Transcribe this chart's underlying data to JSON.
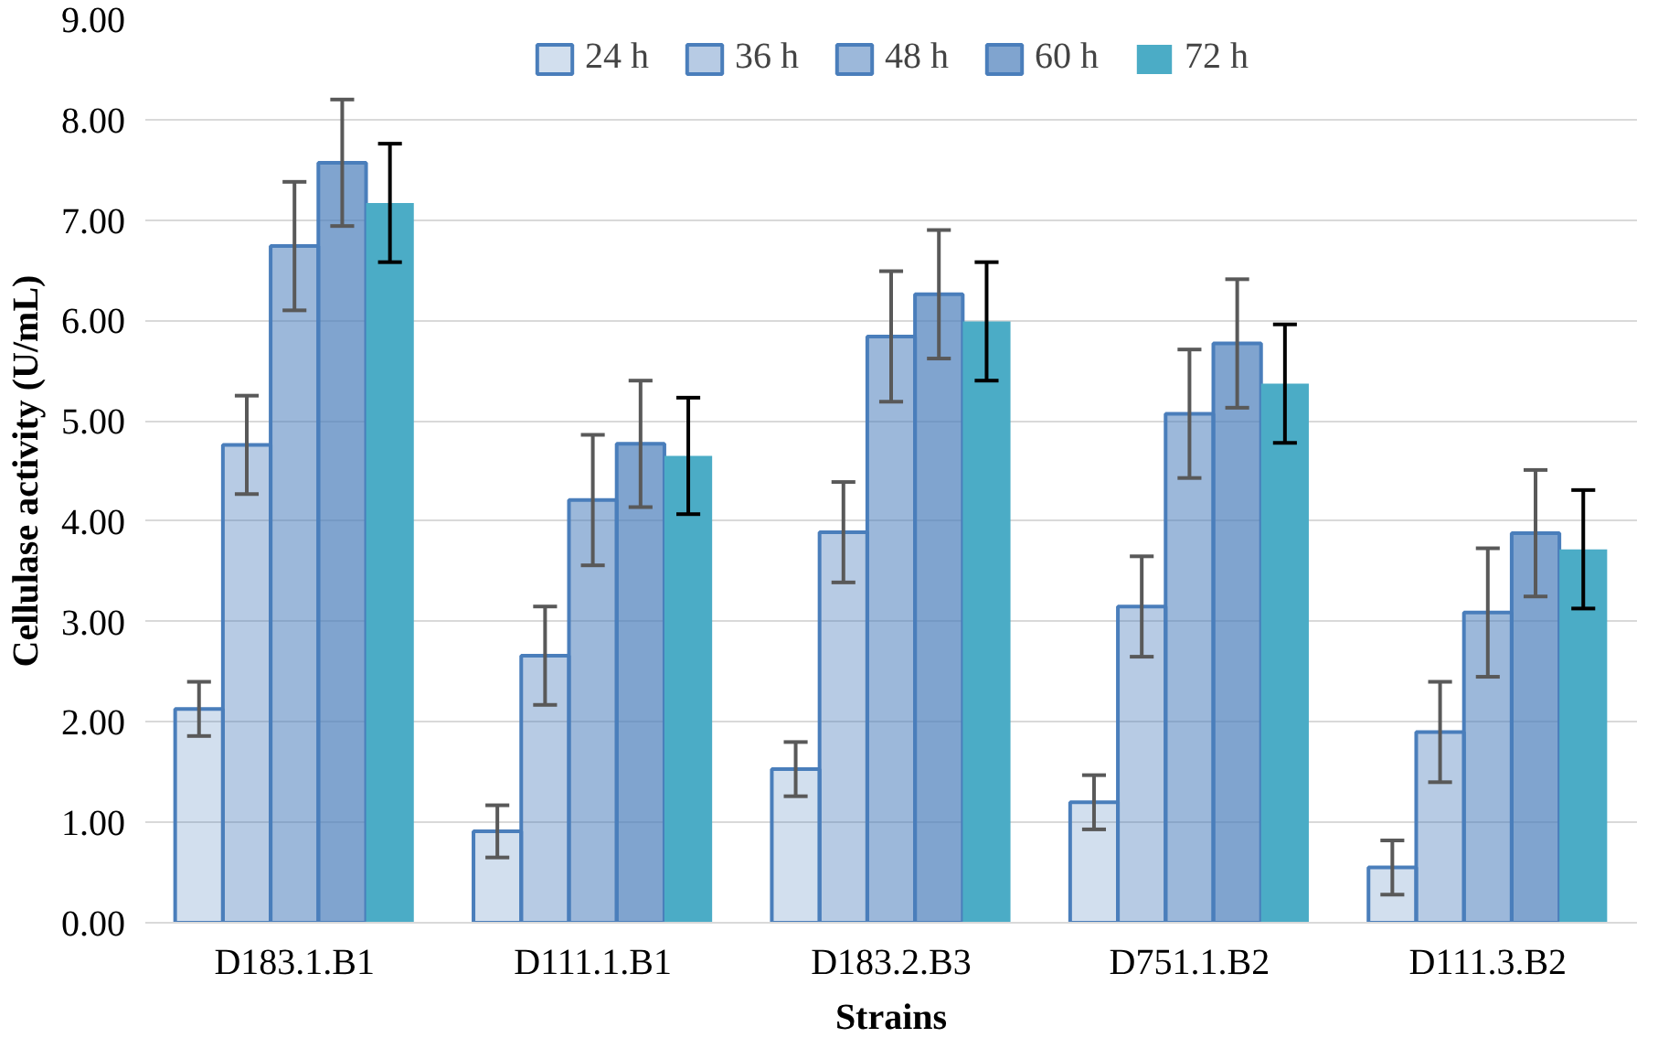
{
  "chart_data": {
    "type": "bar",
    "xlabel": "Strains",
    "ylabel": "Cellulase activity (U/mL)",
    "categories": [
      "D183.1.B1",
      "D111.1.B1",
      "D183.2.B3",
      "D751.1.B2",
      "D111.3.B2"
    ],
    "series": [
      {
        "name": "24 h",
        "color": "#4a7ebb",
        "values": [
          2.13,
          0.91,
          1.53,
          1.2,
          0.55
        ],
        "errors": [
          0.27,
          0.26,
          0.27,
          0.27,
          0.27
        ]
      },
      {
        "name": "36 h",
        "color": "#4a7ebb",
        "values": [
          4.76,
          2.66,
          3.89,
          3.15,
          1.9
        ],
        "errors": [
          0.49,
          0.49,
          0.5,
          0.5,
          0.5
        ]
      },
      {
        "name": "48 h",
        "color": "#4a7ebb",
        "values": [
          6.74,
          4.21,
          5.84,
          5.07,
          3.09
        ],
        "errors": [
          0.64,
          0.65,
          0.65,
          0.64,
          0.64
        ]
      },
      {
        "name": "60 h",
        "color": "#4a7ebb",
        "values": [
          7.57,
          4.77,
          6.26,
          5.77,
          3.88
        ],
        "errors": [
          0.63,
          0.63,
          0.64,
          0.64,
          0.63
        ]
      },
      {
        "name": "72 h",
        "color": "#4bacc6",
        "values": [
          7.17,
          4.65,
          5.99,
          5.37,
          3.72
        ],
        "errors": [
          0.59,
          0.58,
          0.59,
          0.59,
          0.59
        ]
      }
    ],
    "ylim": [
      0,
      9
    ],
    "yticks": [
      {
        "value": 0,
        "label": "0.00"
      },
      {
        "value": 1,
        "label": "1.00"
      },
      {
        "value": 2,
        "label": "2.00"
      },
      {
        "value": 3,
        "label": "3.00"
      },
      {
        "value": 4,
        "label": "4.00"
      },
      {
        "value": 5,
        "label": "5.00"
      },
      {
        "value": 6,
        "label": "6.00"
      },
      {
        "value": 7,
        "label": "7.00"
      },
      {
        "value": 8,
        "label": "8.00"
      },
      {
        "value": 9,
        "label": "9.00"
      }
    ],
    "grid": "y",
    "legend": "top"
  }
}
